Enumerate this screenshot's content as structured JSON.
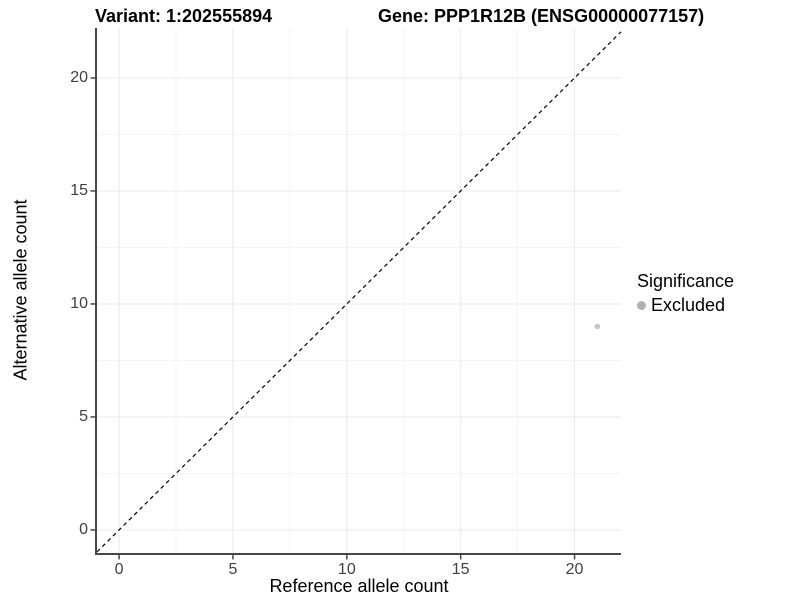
{
  "titles": {
    "variant": "Variant: 1:202555894",
    "gene": "Gene: PPP1R12B (ENSG00000077157)"
  },
  "chart_data": {
    "type": "scatter",
    "title_left": "Variant: 1:202555894",
    "title_right": "Gene: PPP1R12B (ENSG00000077157)",
    "xlabel": "Reference allele count",
    "ylabel": "Alternative allele count",
    "x_ticks": [
      0,
      5,
      10,
      15,
      20
    ],
    "y_ticks": [
      0,
      5,
      10,
      15,
      20
    ],
    "x_minor_gridlines": [
      2.5,
      7.5,
      12.5,
      17.5
    ],
    "y_minor_gridlines": [
      2.5,
      7.5,
      12.5,
      17.5
    ],
    "xlim": [
      -0.97,
      22.04
    ],
    "ylim": [
      -1.02,
      22.21
    ],
    "grid": "major and minor, light gray",
    "reference_line": {
      "type": "identity y=x",
      "style": "dashed",
      "color": "#000000"
    },
    "series": [
      {
        "name": "Excluded",
        "color": "#c4c4c4",
        "points": [
          {
            "x": 21,
            "y": 9
          }
        ]
      }
    ],
    "legend": {
      "title": "Significance",
      "position": "right",
      "items": [
        {
          "label": "Excluded",
          "color": "#b0b0b0"
        }
      ]
    }
  },
  "colors": {
    "background": "#ffffff",
    "grid_major": "#e9e9e9",
    "grid_minor": "#f4f4f4",
    "axis_line": "#474747",
    "tick_label": "#404040",
    "title_text": "#000000"
  }
}
